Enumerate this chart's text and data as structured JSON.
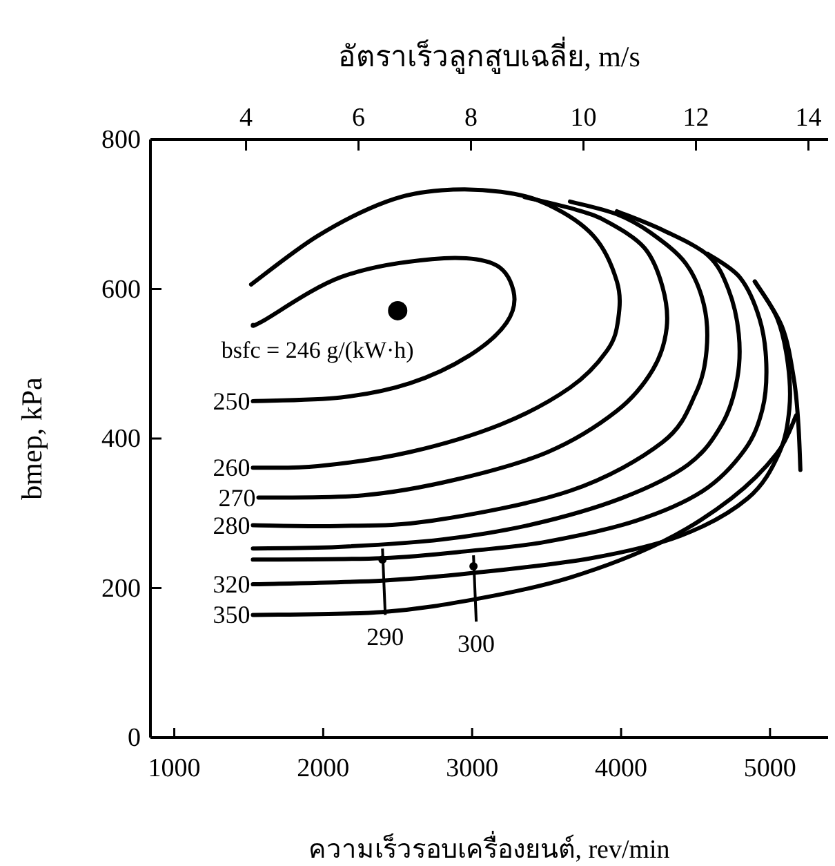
{
  "chart_data": {
    "type": "line",
    "x2label": "อัตราเร็วลูกสูบเฉลี่ย, m/s",
    "xlabel": "ความเร็วรอบเครื่องยนต์, rev/min",
    "ylabel": "bmep, kPa",
    "xlim": [
      840,
      5390
    ],
    "xticks": [
      1000,
      2000,
      3000,
      4000,
      5000
    ],
    "x2lim": [
      2.3,
      14.35
    ],
    "x2ticks": [
      4,
      6,
      8,
      10,
      12,
      14
    ],
    "ylim": [
      0,
      800
    ],
    "yticks": [
      0,
      200,
      400,
      600,
      800
    ],
    "grid": false,
    "marker": "none",
    "line_style": "solid",
    "series": [
      {
        "color": "#000000",
        "x": [
          1528,
          1593,
          2120,
          2731,
          3139,
          3278,
          3231,
          2981,
          2583,
          2120,
          1528
        ],
        "values": [
          552,
          557,
          616,
          640,
          634,
          597,
          555,
          511,
          474,
          455,
          450
        ]
      },
      {
        "color": "#000000",
        "x": [
          1516,
          1963,
          2426,
          2796,
          3194,
          3509,
          3815,
          3972,
          3981,
          3907,
          3657,
          3194,
          2583,
          1963,
          1528
        ],
        "values": [
          606,
          671,
          717,
          732,
          730,
          713,
          671,
          610,
          560,
          518,
          468,
          419,
          382,
          363,
          361
        ]
      },
      {
        "color": "#000000",
        "x": [
          3352,
          3700,
          3907,
          4157,
          4278,
          4306,
          4213,
          3972,
          3509,
          2889,
          2269,
          1565
        ],
        "values": [
          723,
          706,
          690,
          655,
          603,
          548,
          492,
          437,
          382,
          345,
          324,
          321
        ]
      },
      {
        "color": "#000000",
        "x": [
          3657,
          3972,
          4200,
          4435,
          4556,
          4574,
          4500,
          4278,
          3657,
          2731,
          2100,
          1528
        ],
        "values": [
          717,
          700,
          675,
          634,
          579,
          518,
          460,
          395,
          330,
          290,
          283,
          284
        ]
      },
      {
        "color": "#000000",
        "x": [
          3972,
          4278,
          4583,
          4720,
          4790,
          4780,
          4680,
          4450,
          4000,
          3400,
          2800,
          2100,
          1528
        ],
        "values": [
          704,
          679,
          645,
          600,
          540,
          480,
          420,
          365,
          320,
          285,
          265,
          255,
          253
        ]
      },
      {
        "color": "#000000",
        "x": [
          4583,
          4800,
          4930,
          4975,
          4950,
          4830,
          4550,
          4100,
          3500,
          3000,
          2400,
          1528
        ],
        "values": [
          647,
          615,
          560,
          500,
          440,
          385,
          330,
          290,
          262,
          250,
          240,
          238
        ]
      },
      {
        "color": "#000000",
        "x": [
          4898,
          5050,
          5120,
          5130,
          5060,
          4850,
          4400,
          3800,
          3000,
          2400,
          1528
        ],
        "values": [
          610,
          560,
          500,
          440,
          380,
          320,
          270,
          240,
          220,
          210,
          205
        ]
      },
      {
        "color": "#000000",
        "x": [
          1528,
          2398,
          3046,
          3657,
          4278,
          4741,
          5046,
          5176
        ],
        "values": [
          164,
          168,
          186,
          214,
          262,
          320,
          380,
          431
        ]
      },
      {
        "color": "#000000",
        "x": [
          4898,
          5080,
          5160,
          5190,
          5204
        ],
        "values": [
          610,
          550,
          480,
          420,
          358
        ]
      },
      {
        "type": "scatter",
        "marker": "circle",
        "color": "#000000",
        "x": [
          2500
        ],
        "values": [
          571
        ]
      }
    ],
    "annotations": [
      {
        "text": "bsfc = 246 g/(kW·h)",
        "x": 2500,
        "y": 571
      },
      {
        "text": "250",
        "x": 1528,
        "y": 450
      },
      {
        "text": "260",
        "x": 1528,
        "y": 361
      },
      {
        "text": "270",
        "x": 1565,
        "y": 321
      },
      {
        "text": "280",
        "x": 1528,
        "y": 284
      },
      {
        "text": "320",
        "x": 1528,
        "y": 205
      },
      {
        "text": "350",
        "x": 1528,
        "y": 164
      },
      {
        "text": "290",
        "x": 2398,
        "y": 238
      },
      {
        "text": "300",
        "x": 3009,
        "y": 229
      }
    ]
  }
}
